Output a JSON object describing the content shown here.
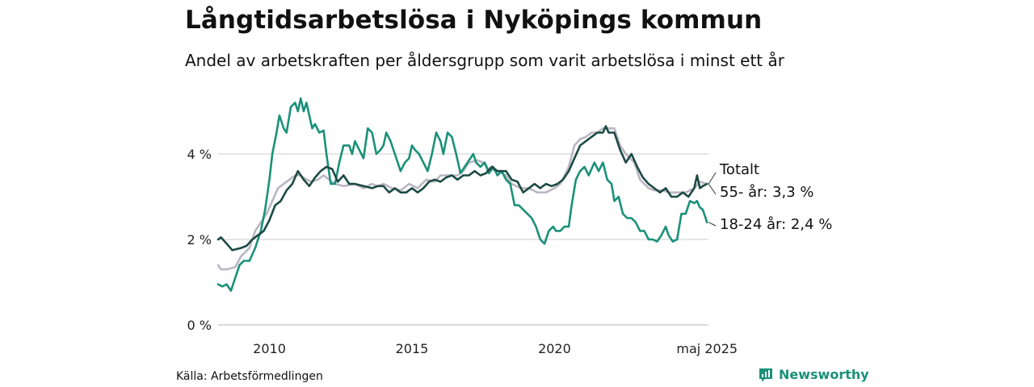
{
  "chart_data": {
    "type": "line",
    "title": "Långtidsarbetslösa i Nyköpings kommun",
    "subtitle": "Andel av arbetskraften per åldersgrupp som varit arbetslösa i minst ett år",
    "xlabel": "",
    "ylabel": "",
    "x_range": [
      2008.2,
      2025.4
    ],
    "ylim": [
      0,
      5.5
    ],
    "y_ticks": [
      {
        "value": 0,
        "label": "0 %"
      },
      {
        "value": 2,
        "label": "2 %"
      },
      {
        "value": 4,
        "label": "4 %"
      }
    ],
    "x_ticks": [
      {
        "value": 2010,
        "label": "2010"
      },
      {
        "value": 2015,
        "label": "2015"
      },
      {
        "value": 2020,
        "label": "2020"
      },
      {
        "value": 2025.35,
        "label": "maj 2025"
      }
    ],
    "grid": "horizontal",
    "legend": "direct labels at line ends (right)",
    "series": [
      {
        "name": "Totalt",
        "color": "#bab6c2",
        "end_label": "Totalt",
        "points": [
          [
            2008.2,
            1.4
          ],
          [
            2008.3,
            1.3
          ],
          [
            2008.5,
            1.3
          ],
          [
            2008.8,
            1.35
          ],
          [
            2009.0,
            1.6
          ],
          [
            2009.3,
            1.8
          ],
          [
            2009.5,
            2.2
          ],
          [
            2009.7,
            2.4
          ],
          [
            2009.9,
            2.6
          ],
          [
            2010.1,
            2.9
          ],
          [
            2010.3,
            3.2
          ],
          [
            2010.5,
            3.3
          ],
          [
            2010.7,
            3.4
          ],
          [
            2010.9,
            3.5
          ],
          [
            2011.1,
            3.5
          ],
          [
            2011.3,
            3.4
          ],
          [
            2011.5,
            3.35
          ],
          [
            2011.7,
            3.4
          ],
          [
            2011.9,
            3.5
          ],
          [
            2012.1,
            3.4
          ],
          [
            2012.3,
            3.3
          ],
          [
            2012.6,
            3.25
          ],
          [
            2013.0,
            3.3
          ],
          [
            2013.3,
            3.2
          ],
          [
            2013.6,
            3.3
          ],
          [
            2013.8,
            3.25
          ],
          [
            2014.0,
            3.3
          ],
          [
            2014.3,
            3.2
          ],
          [
            2014.6,
            3.15
          ],
          [
            2014.9,
            3.3
          ],
          [
            2015.2,
            3.2
          ],
          [
            2015.5,
            3.4
          ],
          [
            2015.8,
            3.35
          ],
          [
            2016.0,
            3.5
          ],
          [
            2016.3,
            3.5
          ],
          [
            2016.6,
            3.5
          ],
          [
            2016.8,
            3.6
          ],
          [
            2017.0,
            3.8
          ],
          [
            2017.3,
            3.85
          ],
          [
            2017.5,
            3.8
          ],
          [
            2017.7,
            3.65
          ],
          [
            2018.0,
            3.6
          ],
          [
            2018.3,
            3.5
          ],
          [
            2018.5,
            3.3
          ],
          [
            2018.8,
            3.2
          ],
          [
            2019.1,
            3.2
          ],
          [
            2019.4,
            3.1
          ],
          [
            2019.7,
            3.1
          ],
          [
            2020.0,
            3.2
          ],
          [
            2020.2,
            3.3
          ],
          [
            2020.5,
            3.7
          ],
          [
            2020.7,
            4.2
          ],
          [
            2020.9,
            4.35
          ],
          [
            2021.1,
            4.4
          ],
          [
            2021.3,
            4.5
          ],
          [
            2021.5,
            4.5
          ],
          [
            2021.7,
            4.6
          ],
          [
            2021.9,
            4.6
          ],
          [
            2022.1,
            4.6
          ],
          [
            2022.3,
            4.2
          ],
          [
            2022.5,
            4.0
          ],
          [
            2022.8,
            3.8
          ],
          [
            2023.0,
            3.4
          ],
          [
            2023.3,
            3.2
          ],
          [
            2023.5,
            3.15
          ],
          [
            2023.8,
            3.15
          ],
          [
            2024.0,
            3.1
          ],
          [
            2024.3,
            3.1
          ],
          [
            2024.6,
            3.1
          ],
          [
            2024.9,
            3.2
          ],
          [
            2025.1,
            3.35
          ],
          [
            2025.35,
            3.3
          ]
        ]
      },
      {
        "name": "55- år",
        "color": "#1c4a44",
        "end_label": "55- år: 3,3 %",
        "points": [
          [
            2008.2,
            2.0
          ],
          [
            2008.3,
            2.05
          ],
          [
            2008.5,
            1.9
          ],
          [
            2008.7,
            1.75
          ],
          [
            2009.0,
            1.8
          ],
          [
            2009.2,
            1.85
          ],
          [
            2009.4,
            2.0
          ],
          [
            2009.6,
            2.1
          ],
          [
            2009.8,
            2.2
          ],
          [
            2010.0,
            2.45
          ],
          [
            2010.2,
            2.8
          ],
          [
            2010.4,
            2.9
          ],
          [
            2010.6,
            3.15
          ],
          [
            2010.8,
            3.3
          ],
          [
            2011.0,
            3.6
          ],
          [
            2011.2,
            3.4
          ],
          [
            2011.4,
            3.25
          ],
          [
            2011.6,
            3.45
          ],
          [
            2011.8,
            3.6
          ],
          [
            2012.0,
            3.7
          ],
          [
            2012.2,
            3.65
          ],
          [
            2012.4,
            3.35
          ],
          [
            2012.6,
            3.5
          ],
          [
            2012.8,
            3.3
          ],
          [
            2013.0,
            3.3
          ],
          [
            2013.3,
            3.25
          ],
          [
            2013.6,
            3.2
          ],
          [
            2013.8,
            3.25
          ],
          [
            2014.0,
            3.25
          ],
          [
            2014.2,
            3.1
          ],
          [
            2014.4,
            3.2
          ],
          [
            2014.6,
            3.1
          ],
          [
            2014.8,
            3.1
          ],
          [
            2015.0,
            3.2
          ],
          [
            2015.2,
            3.1
          ],
          [
            2015.4,
            3.2
          ],
          [
            2015.6,
            3.35
          ],
          [
            2015.8,
            3.4
          ],
          [
            2016.0,
            3.35
          ],
          [
            2016.2,
            3.45
          ],
          [
            2016.4,
            3.5
          ],
          [
            2016.6,
            3.4
          ],
          [
            2016.8,
            3.5
          ],
          [
            2017.0,
            3.5
          ],
          [
            2017.2,
            3.6
          ],
          [
            2017.4,
            3.5
          ],
          [
            2017.6,
            3.55
          ],
          [
            2017.8,
            3.7
          ],
          [
            2018.0,
            3.6
          ],
          [
            2018.3,
            3.6
          ],
          [
            2018.5,
            3.4
          ],
          [
            2018.7,
            3.35
          ],
          [
            2018.9,
            3.1
          ],
          [
            2019.1,
            3.2
          ],
          [
            2019.3,
            3.3
          ],
          [
            2019.5,
            3.2
          ],
          [
            2019.7,
            3.3
          ],
          [
            2019.9,
            3.25
          ],
          [
            2020.1,
            3.3
          ],
          [
            2020.3,
            3.4
          ],
          [
            2020.5,
            3.6
          ],
          [
            2020.7,
            3.9
          ],
          [
            2020.9,
            4.2
          ],
          [
            2021.1,
            4.3
          ],
          [
            2021.3,
            4.4
          ],
          [
            2021.5,
            4.5
          ],
          [
            2021.7,
            4.5
          ],
          [
            2021.8,
            4.65
          ],
          [
            2021.9,
            4.5
          ],
          [
            2022.1,
            4.5
          ],
          [
            2022.3,
            4.1
          ],
          [
            2022.5,
            3.8
          ],
          [
            2022.7,
            4.0
          ],
          [
            2022.9,
            3.7
          ],
          [
            2023.1,
            3.45
          ],
          [
            2023.3,
            3.3
          ],
          [
            2023.5,
            3.2
          ],
          [
            2023.7,
            3.1
          ],
          [
            2023.9,
            3.2
          ],
          [
            2024.1,
            3.0
          ],
          [
            2024.3,
            3.0
          ],
          [
            2024.5,
            3.1
          ],
          [
            2024.7,
            3.0
          ],
          [
            2024.9,
            3.2
          ],
          [
            2025.0,
            3.5
          ],
          [
            2025.1,
            3.2
          ],
          [
            2025.2,
            3.25
          ],
          [
            2025.35,
            3.3
          ]
        ]
      },
      {
        "name": "18-24 år",
        "color": "#1a9179",
        "end_label": "18-24 år: 2,4 %",
        "points": [
          [
            2008.2,
            0.95
          ],
          [
            2008.35,
            0.9
          ],
          [
            2008.5,
            0.95
          ],
          [
            2008.65,
            0.8
          ],
          [
            2008.8,
            1.1
          ],
          [
            2008.95,
            1.4
          ],
          [
            2009.1,
            1.5
          ],
          [
            2009.3,
            1.5
          ],
          [
            2009.5,
            1.8
          ],
          [
            2009.7,
            2.2
          ],
          [
            2009.85,
            2.7
          ],
          [
            2010.0,
            3.4
          ],
          [
            2010.1,
            4.0
          ],
          [
            2010.25,
            4.5
          ],
          [
            2010.35,
            4.9
          ],
          [
            2010.5,
            4.6
          ],
          [
            2010.6,
            4.5
          ],
          [
            2010.75,
            5.1
          ],
          [
            2010.9,
            5.2
          ],
          [
            2011.0,
            5.0
          ],
          [
            2011.1,
            5.3
          ],
          [
            2011.2,
            5.0
          ],
          [
            2011.3,
            5.2
          ],
          [
            2011.4,
            4.9
          ],
          [
            2011.5,
            4.6
          ],
          [
            2011.6,
            4.7
          ],
          [
            2011.75,
            4.5
          ],
          [
            2011.9,
            4.55
          ],
          [
            2012.0,
            4.0
          ],
          [
            2012.15,
            3.3
          ],
          [
            2012.3,
            3.3
          ],
          [
            2012.45,
            3.8
          ],
          [
            2012.6,
            4.2
          ],
          [
            2012.8,
            4.2
          ],
          [
            2012.9,
            4.0
          ],
          [
            2013.0,
            4.3
          ],
          [
            2013.15,
            4.1
          ],
          [
            2013.3,
            3.9
          ],
          [
            2013.45,
            4.6
          ],
          [
            2013.6,
            4.5
          ],
          [
            2013.75,
            4.0
          ],
          [
            2013.9,
            4.1
          ],
          [
            2014.0,
            4.2
          ],
          [
            2014.1,
            4.5
          ],
          [
            2014.25,
            4.3
          ],
          [
            2014.4,
            4.0
          ],
          [
            2014.6,
            3.6
          ],
          [
            2014.75,
            3.8
          ],
          [
            2014.9,
            3.9
          ],
          [
            2015.0,
            4.2
          ],
          [
            2015.1,
            4.1
          ],
          [
            2015.25,
            4.0
          ],
          [
            2015.4,
            3.8
          ],
          [
            2015.55,
            3.6
          ],
          [
            2015.7,
            4.0
          ],
          [
            2015.85,
            4.5
          ],
          [
            2016.0,
            4.3
          ],
          [
            2016.1,
            4.0
          ],
          [
            2016.25,
            4.5
          ],
          [
            2016.4,
            4.4
          ],
          [
            2016.55,
            4.0
          ],
          [
            2016.7,
            3.55
          ],
          [
            2016.85,
            3.7
          ],
          [
            2017.0,
            3.85
          ],
          [
            2017.15,
            4.0
          ],
          [
            2017.25,
            3.8
          ],
          [
            2017.4,
            3.7
          ],
          [
            2017.55,
            3.8
          ],
          [
            2017.7,
            3.55
          ],
          [
            2017.85,
            3.7
          ],
          [
            2018.0,
            3.5
          ],
          [
            2018.15,
            3.6
          ],
          [
            2018.3,
            3.4
          ],
          [
            2018.45,
            3.3
          ],
          [
            2018.6,
            2.8
          ],
          [
            2018.75,
            2.8
          ],
          [
            2018.9,
            2.7
          ],
          [
            2019.05,
            2.6
          ],
          [
            2019.2,
            2.5
          ],
          [
            2019.35,
            2.3
          ],
          [
            2019.5,
            2.0
          ],
          [
            2019.65,
            1.9
          ],
          [
            2019.8,
            2.2
          ],
          [
            2019.95,
            2.3
          ],
          [
            2020.05,
            2.2
          ],
          [
            2020.2,
            2.2
          ],
          [
            2020.35,
            2.3
          ],
          [
            2020.5,
            2.3
          ],
          [
            2020.6,
            2.8
          ],
          [
            2020.75,
            3.4
          ],
          [
            2020.9,
            3.6
          ],
          [
            2021.05,
            3.7
          ],
          [
            2021.2,
            3.5
          ],
          [
            2021.4,
            3.8
          ],
          [
            2021.55,
            3.6
          ],
          [
            2021.7,
            3.8
          ],
          [
            2021.85,
            3.4
          ],
          [
            2022.0,
            3.3
          ],
          [
            2022.1,
            2.9
          ],
          [
            2022.25,
            3.0
          ],
          [
            2022.4,
            2.6
          ],
          [
            2022.55,
            2.5
          ],
          [
            2022.7,
            2.5
          ],
          [
            2022.85,
            2.4
          ],
          [
            2023.0,
            2.2
          ],
          [
            2023.15,
            2.2
          ],
          [
            2023.3,
            2.0
          ],
          [
            2023.45,
            2.0
          ],
          [
            2023.6,
            1.95
          ],
          [
            2023.75,
            2.1
          ],
          [
            2023.9,
            2.3
          ],
          [
            2024.0,
            2.1
          ],
          [
            2024.15,
            1.95
          ],
          [
            2024.3,
            2.0
          ],
          [
            2024.45,
            2.6
          ],
          [
            2024.6,
            2.6
          ],
          [
            2024.75,
            2.9
          ],
          [
            2024.9,
            2.85
          ],
          [
            2025.0,
            2.9
          ],
          [
            2025.1,
            2.75
          ],
          [
            2025.2,
            2.7
          ],
          [
            2025.3,
            2.5
          ],
          [
            2025.35,
            2.4
          ]
        ]
      }
    ]
  },
  "footer": {
    "source": "Källa: Arbetsförmedlingen",
    "brand": "Newsworthy",
    "brand_icon": "bar-chart-speech-icon"
  }
}
